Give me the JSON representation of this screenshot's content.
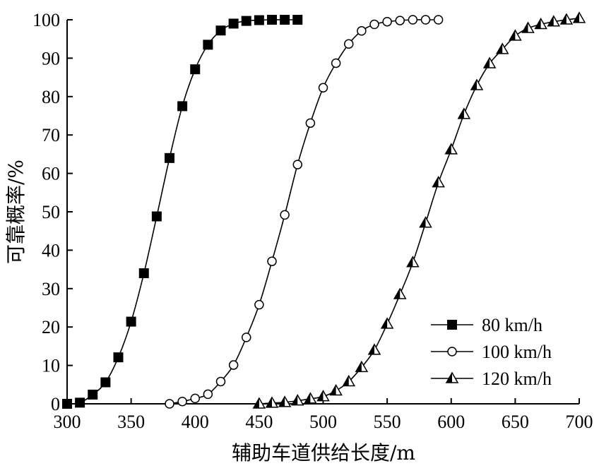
{
  "chart_data": {
    "type": "line",
    "xlabel": "辅助车道供给长度/m",
    "ylabel": "可靠概率/%",
    "xlim": [
      300,
      700
    ],
    "ylim": [
      0,
      100
    ],
    "xticks": [
      300,
      350,
      400,
      450,
      500,
      550,
      600,
      650,
      700
    ],
    "yticks": [
      0,
      10,
      20,
      30,
      40,
      50,
      60,
      70,
      80,
      90,
      100
    ],
    "grid": false,
    "legend_position": "bottom-right",
    "series": [
      {
        "name": "80 km/h",
        "marker": "filled-square",
        "color": "#000000",
        "x": [
          300,
          310,
          320,
          330,
          340,
          350,
          360,
          370,
          380,
          390,
          400,
          410,
          420,
          430,
          440,
          450,
          460,
          470,
          480
        ],
        "y": [
          0,
          0.3,
          2.4,
          5.6,
          12.1,
          21.4,
          34.0,
          48.8,
          64.0,
          77.5,
          87.1,
          93.5,
          97.2,
          99.0,
          99.7,
          99.9,
          100,
          100,
          100
        ]
      },
      {
        "name": "100 km/h",
        "marker": "open-circle",
        "color": "#000000",
        "x": [
          380,
          390,
          400,
          410,
          420,
          430,
          440,
          450,
          460,
          470,
          480,
          490,
          500,
          510,
          520,
          530,
          540,
          550,
          560,
          570,
          580,
          590
        ],
        "y": [
          0,
          0.6,
          1.4,
          2.5,
          5.8,
          10.1,
          17.3,
          25.8,
          37.1,
          49.2,
          62.3,
          73.1,
          82.3,
          88.7,
          93.7,
          97.1,
          98.8,
          99.5,
          99.8,
          100,
          100,
          100
        ]
      },
      {
        "name": "120 km/h",
        "marker": "half-filled-triangle",
        "color": "#000000",
        "x": [
          450,
          460,
          470,
          480,
          490,
          500,
          510,
          520,
          530,
          540,
          550,
          560,
          570,
          580,
          590,
          600,
          610,
          620,
          630,
          640,
          650,
          660,
          670,
          680,
          690,
          700
        ],
        "y": [
          0,
          0.2,
          0.4,
          0.8,
          1.3,
          1.9,
          3.4,
          5.8,
          9.5,
          14.0,
          20.8,
          28.5,
          36.8,
          47.1,
          57.6,
          66.2,
          75.4,
          82.9,
          88.6,
          92.3,
          95.8,
          97.8,
          98.8,
          99.5,
          100,
          100.4
        ]
      }
    ]
  }
}
